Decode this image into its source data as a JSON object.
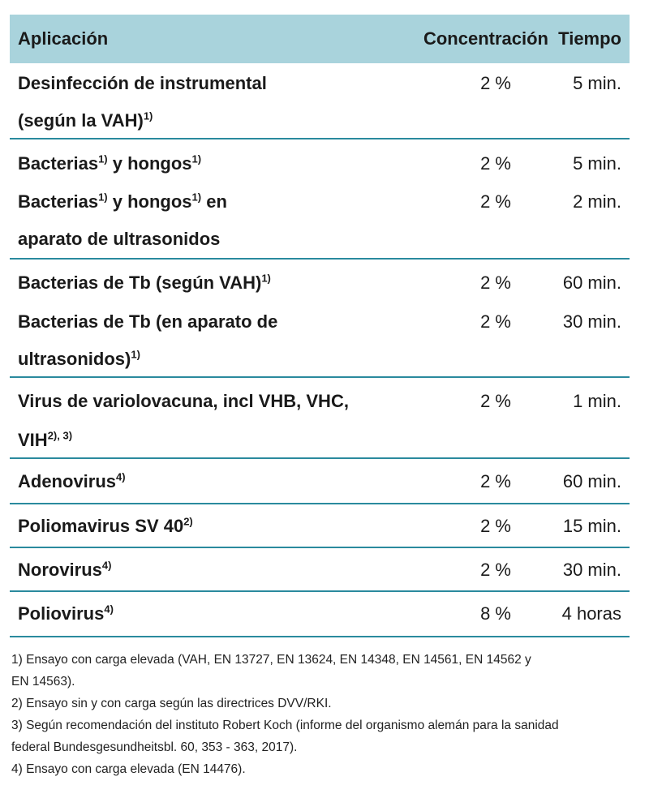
{
  "header": {
    "application": "Aplicación",
    "concentration": "Concentración",
    "time": "Tiempo"
  },
  "groups": [
    {
      "lines": [
        {
          "app": "Desinfección de instrumental",
          "sup": "",
          "conc": "2 %",
          "time": "5 min."
        },
        {
          "app": "(según la VAH)",
          "sup": "1)",
          "conc": "",
          "time": ""
        }
      ]
    },
    {
      "lines": [
        {
          "app": "Bacterias",
          "sup": "1)",
          "app2": " y hongos",
          "sup2": "1)",
          "conc": "2 %",
          "time": "5 min."
        },
        {
          "app": "Bacterias",
          "sup": "1)",
          "app2": " y hongos",
          "sup2": "1)",
          "app3": " en",
          "conc": "2 %",
          "time": "2 min."
        },
        {
          "app": "aparato de ultrasonidos",
          "sup": "",
          "conc": "",
          "time": ""
        }
      ]
    },
    {
      "lines": [
        {
          "app": "Bacterias de Tb (según VAH)",
          "sup": "1)",
          "conc": "2 %",
          "time": "60 min."
        },
        {
          "app": "Bacterias de Tb (en aparato de",
          "sup": "",
          "conc": "2 %",
          "time": "30 min."
        },
        {
          "app": "ultrasonidos)",
          "sup": "1)",
          "conc": "",
          "time": ""
        }
      ]
    },
    {
      "lines": [
        {
          "app": "Virus de variolovacuna, incl VHB, VHC,",
          "sup": "",
          "conc": "2 %",
          "time": "1 min."
        },
        {
          "app": "VIH",
          "sup": "2), 3)",
          "conc": "",
          "time": ""
        }
      ]
    },
    {
      "lines": [
        {
          "app": "Adenovirus",
          "sup": "4)",
          "conc": "2 %",
          "time": "60 min."
        }
      ]
    },
    {
      "lines": [
        {
          "app": "Poliomavirus SV 40",
          "sup": "2)",
          "conc": "2 %",
          "time": "15 min."
        }
      ]
    },
    {
      "lines": [
        {
          "app": "Norovirus",
          "sup": "4)",
          "conc": "2 %",
          "time": "30 min."
        }
      ]
    },
    {
      "lines": [
        {
          "app": "Poliovirus",
          "sup": "4)",
          "conc": "8 %",
          "time": "4 horas"
        }
      ]
    }
  ],
  "footnotes": [
    "1) Ensayo con carga elevada (VAH, EN 13727, EN 13624, EN 14348, EN 14561, EN 14562 y",
    "EN 14563).",
    "2) Ensayo sin y con carga según las directrices DVV/RKI.",
    "3) Según recomendación del instituto Robert Koch (informe del organismo alemán para la sanidad",
    "federal Bundesgesundheitsbl. 60, 353 - 363, 2017).",
    "4) Ensayo con carga elevada (EN 14476)."
  ]
}
